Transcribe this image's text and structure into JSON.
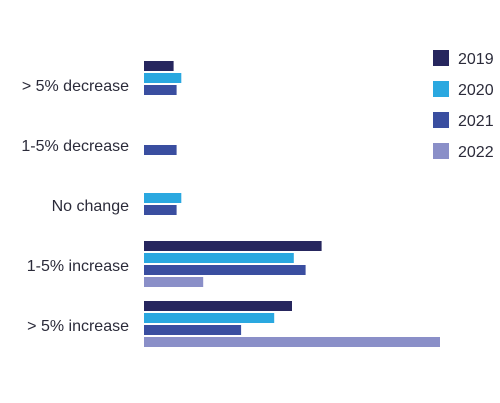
{
  "chart_data": {
    "type": "bar",
    "orientation": "horizontal",
    "categories": [
      "> 5% decrease",
      "1-5% decrease",
      "No change",
      "1-5% increase",
      "> 5% increase"
    ],
    "series": [
      {
        "name": "2019",
        "color": "#26265e",
        "values": [
          5,
          0,
          0,
          30,
          25
        ]
      },
      {
        "name": "2020",
        "color": "#2aa8e0",
        "values": [
          6.3,
          0,
          6.3,
          25.3,
          22
        ]
      },
      {
        "name": "2021",
        "color": "#3a4ea0",
        "values": [
          5.5,
          5.5,
          5.5,
          27.3,
          16.4
        ]
      },
      {
        "name": "2022",
        "color": "#8a8fc8",
        "values": [
          0,
          0,
          0,
          10,
          50
        ]
      }
    ],
    "xlim": [
      0,
      55
    ],
    "grid": false,
    "legend_position": "top-right",
    "title": "",
    "xlabel": "",
    "ylabel": ""
  }
}
